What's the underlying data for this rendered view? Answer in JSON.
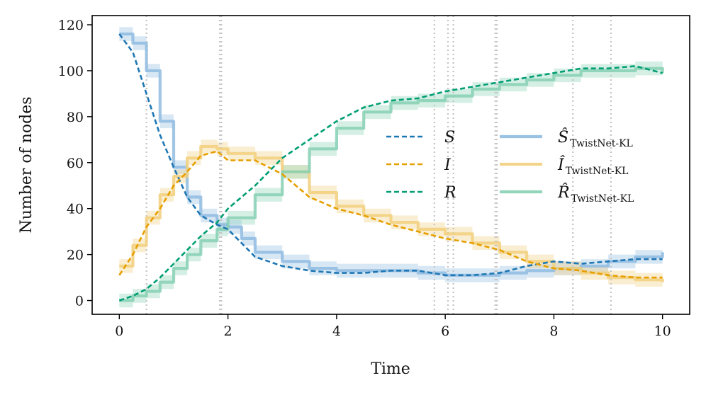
{
  "chart_data": {
    "type": "line",
    "title": "",
    "xlabel": "Time",
    "ylabel": "Number of nodes",
    "xlim": [
      -0.5,
      10.5
    ],
    "ylim": [
      -6,
      124
    ],
    "xticks": [
      0,
      2,
      4,
      6,
      8,
      10
    ],
    "yticks": [
      0,
      20,
      40,
      60,
      80,
      100,
      120
    ],
    "grid": false,
    "legend_location": "center-right",
    "vlines": [
      0.5,
      1.85,
      1.88,
      5.8,
      6.05,
      6.15,
      6.92,
      6.95,
      8.35,
      9.05
    ],
    "series": [
      {
        "name": "S",
        "legend_math": "S",
        "role": "observed",
        "color": "#1f77b4",
        "x": [
          0,
          0.25,
          0.5,
          0.75,
          1.0,
          1.25,
          1.5,
          1.8,
          2.0,
          2.25,
          2.5,
          3.0,
          3.5,
          4.0,
          4.5,
          5.0,
          5.5,
          6.0,
          6.5,
          7.0,
          7.5,
          8.0,
          8.5,
          9.0,
          9.5,
          10.0
        ],
        "values": [
          116,
          108,
          90,
          72,
          58,
          45,
          37,
          33,
          31,
          25,
          19,
          15,
          13,
          12,
          12,
          13,
          13,
          11,
          11,
          12,
          15,
          17,
          16,
          17,
          18,
          18
        ]
      },
      {
        "name": "I",
        "legend_math": "I",
        "role": "observed",
        "color": "#e69f00",
        "x": [
          0,
          0.25,
          0.5,
          0.75,
          1.0,
          1.25,
          1.5,
          1.8,
          2.0,
          2.5,
          3.0,
          3.5,
          4.0,
          4.5,
          5.0,
          5.5,
          6.0,
          6.5,
          7.0,
          7.5,
          8.0,
          8.5,
          9.0,
          9.5,
          10.0
        ],
        "values": [
          11,
          20,
          32,
          40,
          50,
          56,
          63,
          65,
          61,
          61,
          55,
          45,
          40,
          37,
          33,
          30,
          27,
          25,
          22,
          17,
          14,
          13,
          11,
          10,
          10
        ]
      },
      {
        "name": "R",
        "legend_math": "R",
        "role": "observed",
        "color": "#009e73",
        "x": [
          0,
          0.25,
          0.5,
          0.75,
          1.0,
          1.25,
          1.5,
          1.8,
          2.0,
          2.5,
          3.0,
          3.5,
          4.0,
          4.5,
          5.0,
          5.5,
          6.0,
          6.5,
          7.0,
          7.5,
          8.0,
          8.5,
          9.0,
          9.5,
          10.0
        ],
        "values": [
          0,
          2,
          5,
          10,
          16,
          22,
          28,
          34,
          40,
          50,
          62,
          70,
          78,
          84,
          87,
          88,
          91,
          93,
          95,
          97,
          99,
          101,
          101,
          102,
          99
        ]
      },
      {
        "name": "S_hat_TwistNet-KL",
        "legend_math": "Ŝ",
        "legend_sub": "TwistNet-KL",
        "role": "model",
        "color": "#8fbbe0",
        "x": [
          0,
          0.25,
          0.5,
          0.75,
          1.0,
          1.25,
          1.5,
          1.8,
          2.0,
          2.25,
          2.5,
          3.0,
          3.5,
          4.0,
          4.5,
          5.0,
          5.5,
          6.0,
          6.5,
          7.0,
          7.5,
          8.0,
          8.5,
          9.0,
          9.5,
          10.0
        ],
        "values": [
          116,
          112,
          100,
          78,
          58,
          45,
          37,
          33,
          32,
          27,
          21,
          17,
          14,
          13,
          13,
          13,
          12,
          11,
          11,
          12,
          13,
          14,
          15,
          17,
          19,
          21
        ]
      },
      {
        "name": "I_hat_TwistNet-KL",
        "legend_math": "Î",
        "legend_sub": "TwistNet-KL",
        "role": "model",
        "color": "#f1cf7d",
        "x": [
          0,
          0.25,
          0.5,
          0.75,
          1.0,
          1.25,
          1.5,
          1.8,
          2.0,
          2.5,
          3.0,
          3.5,
          4.0,
          4.5,
          5.0,
          5.5,
          6.0,
          6.5,
          7.0,
          7.5,
          8.0,
          8.5,
          9.0,
          9.5,
          10.0
        ],
        "values": [
          15,
          24,
          36,
          46,
          54,
          62,
          67,
          66,
          64,
          62,
          56,
          47,
          41,
          37,
          34,
          31,
          29,
          25,
          21,
          17,
          14,
          12,
          10,
          9,
          8
        ]
      },
      {
        "name": "R_hat_TwistNet-KL",
        "legend_math": "R̂",
        "legend_sub": "TwistNet-KL",
        "role": "model",
        "color": "#86d0b4",
        "x": [
          0,
          0.25,
          0.5,
          0.75,
          1.0,
          1.25,
          1.5,
          1.8,
          2.0,
          2.5,
          3.0,
          3.5,
          4.0,
          4.5,
          5.0,
          5.5,
          6.0,
          6.5,
          7.0,
          7.5,
          8.0,
          8.5,
          9.0,
          9.5,
          10.0
        ],
        "values": [
          0,
          2,
          4,
          8,
          14,
          20,
          26,
          31,
          36,
          46,
          56,
          66,
          75,
          82,
          86,
          87,
          89,
          92,
          94,
          96,
          98,
          100,
          100,
          101,
          99
        ]
      }
    ]
  }
}
